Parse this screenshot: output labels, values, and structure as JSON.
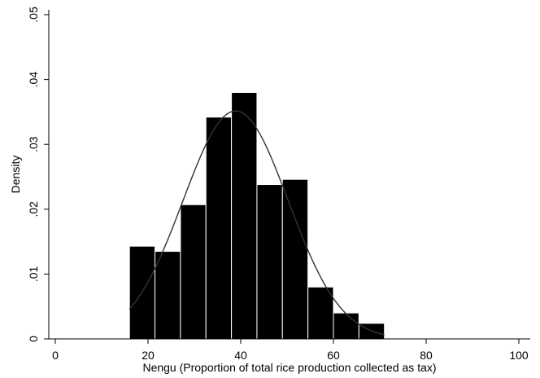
{
  "chart_data": {
    "type": "bar",
    "subtype": "histogram-with-density-curve",
    "xlabel": "Nengu (Proportion of total rice production collected as tax)",
    "ylabel": "Density",
    "xlim": [
      0,
      100
    ],
    "ylim": [
      0,
      0.05
    ],
    "xticks": [
      0,
      20,
      40,
      60,
      80,
      100
    ],
    "xtick_labels": [
      "0",
      "20",
      "40",
      "60",
      "80",
      "100"
    ],
    "yticks": [
      0,
      0.01,
      0.02,
      0.03,
      0.04,
      0.05
    ],
    "ytick_labels": [
      "0",
      ".01",
      ".02",
      ".03",
      ".04",
      ".05"
    ],
    "bin_edges": [
      16,
      21.5,
      27,
      32.5,
      38,
      43.5,
      49,
      54.5,
      60,
      65.5,
      71
    ],
    "values": [
      0.0143,
      0.0135,
      0.0207,
      0.0342,
      0.038,
      0.0238,
      0.0246,
      0.008,
      0.004,
      0.0024
    ],
    "bar_color": "#000000",
    "density_curve": {
      "type": "normal",
      "mean": 38.9,
      "sd": 11.35,
      "x_range": [
        16,
        71
      ],
      "color": "#333333"
    },
    "grid": false,
    "legend": "none"
  }
}
